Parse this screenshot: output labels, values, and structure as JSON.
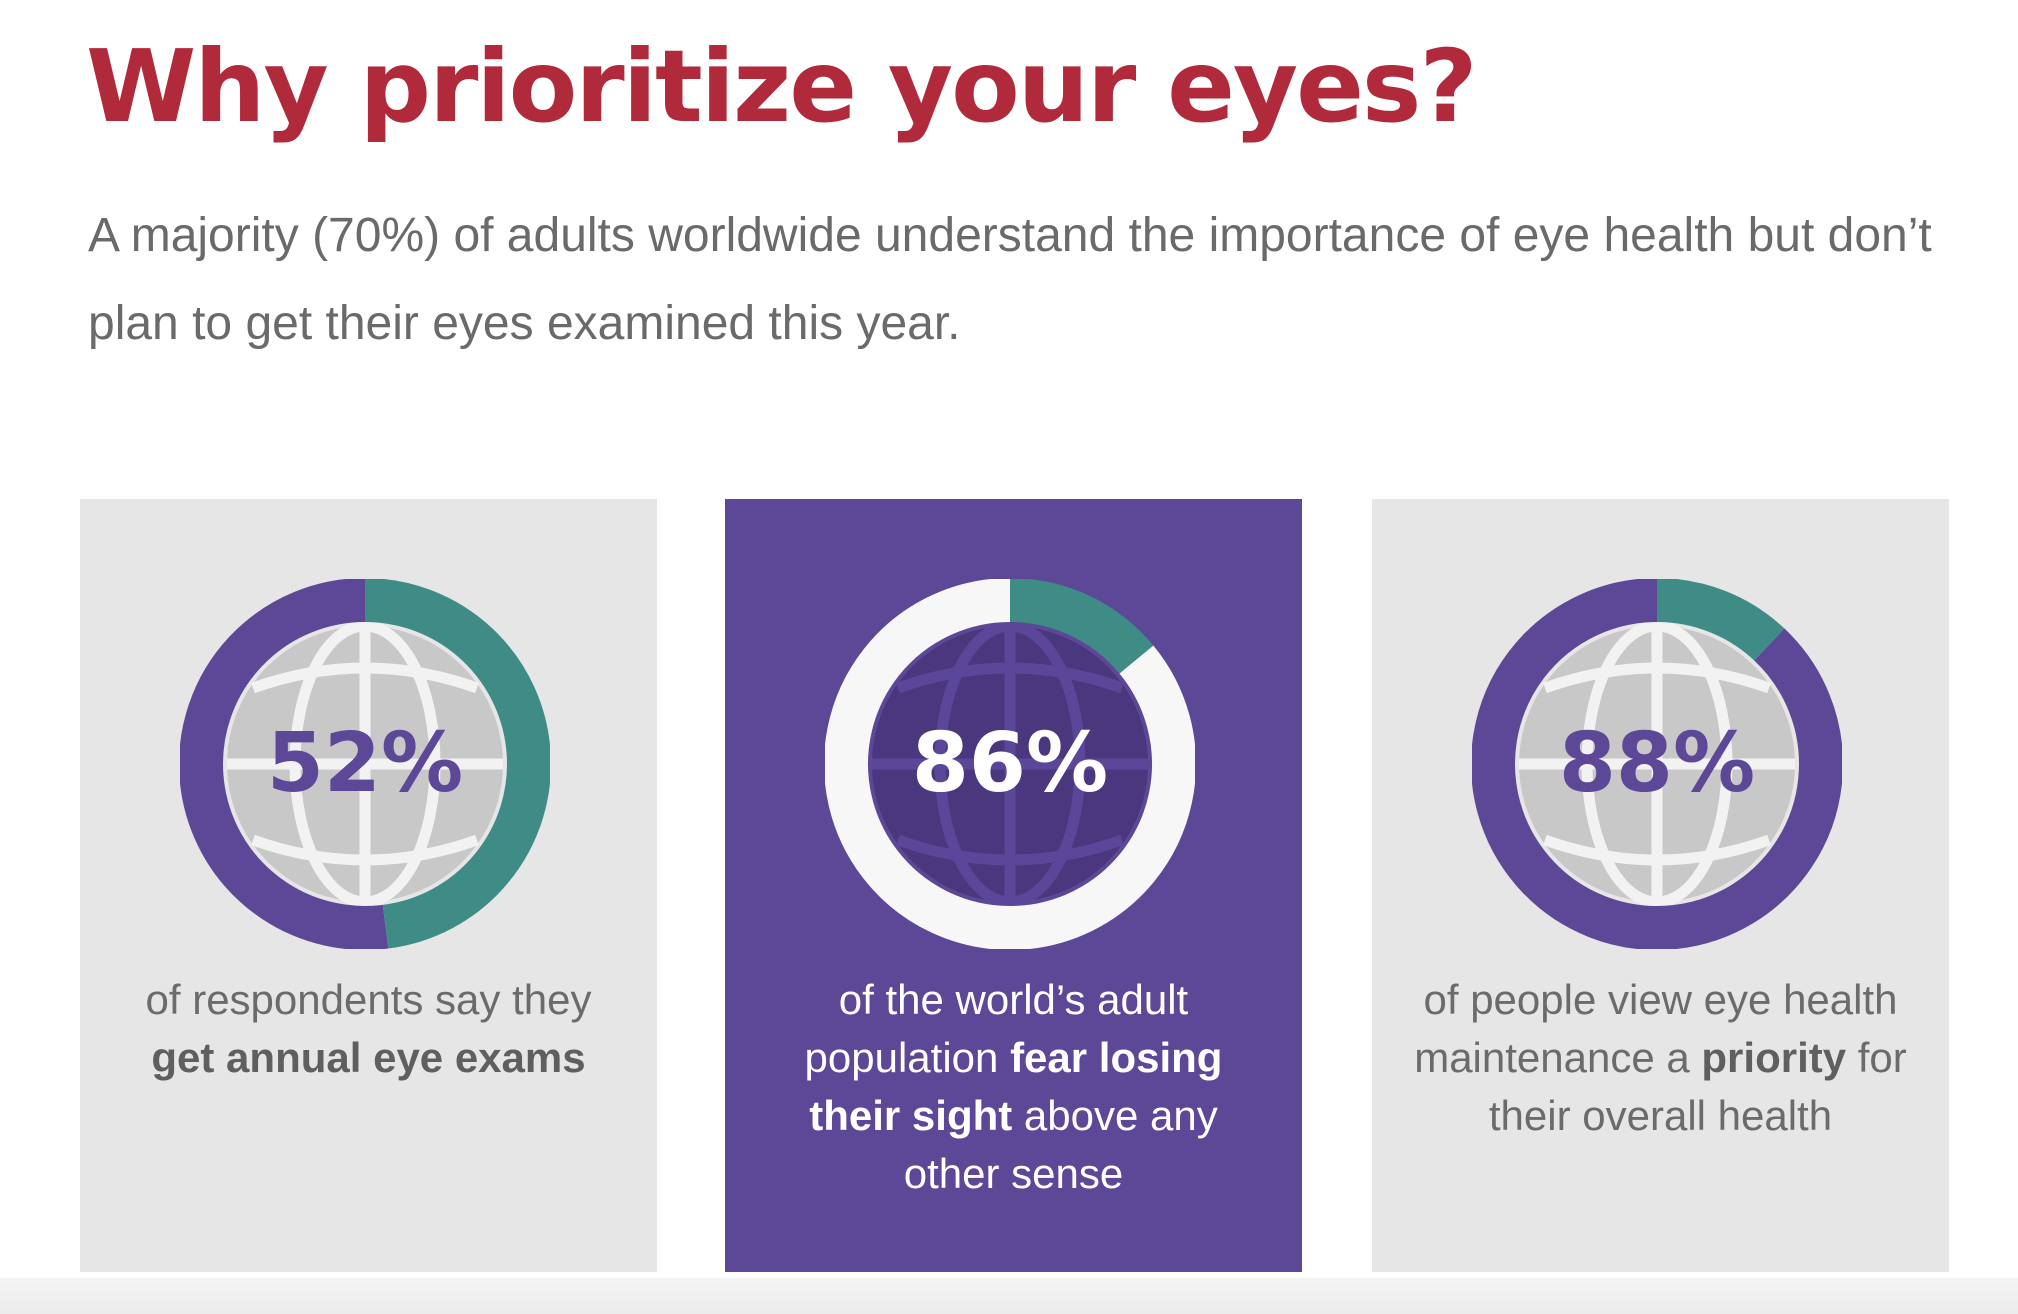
{
  "title": "Why prioritize your eyes?",
  "intro": "A majority (70%) of adults worldwide understand the importance of eye health but don’t plan to get their eyes examined this year.",
  "colors": {
    "title": "#b02a3b",
    "purple": "#5d4797",
    "teal": "#3f8c87",
    "card_gray": "#e6e6e6",
    "globe_gray": "#c8c8c8",
    "white_ring": "#f7f7f7"
  },
  "cards": [
    {
      "stat": "52%",
      "text_before": "of respondents say they ",
      "text_bold": "get annual eye exams",
      "text_mid": "",
      "text_after": ""
    },
    {
      "stat": "86%",
      "text_before": "of the world’s adult population ",
      "text_bold": "fear losing their sight",
      "text_mid": " above any other sense",
      "text_after": ""
    },
    {
      "stat": "88%",
      "text_before": "of people view eye health maintenance a ",
      "text_bold": "priority",
      "text_mid": " for their overall health",
      "text_after": ""
    }
  ],
  "chart_data": [
    {
      "type": "pie",
      "variant": "donut",
      "values": [
        52,
        48
      ],
      "highlight_value": 52,
      "center_label": "52%",
      "colors": [
        "#5d4797",
        "#3f8c87"
      ],
      "center_icon": "globe-icon"
    },
    {
      "type": "pie",
      "variant": "donut",
      "values": [
        86,
        14
      ],
      "highlight_value": 86,
      "center_label": "86%",
      "colors": [
        "#f7f7f7",
        "#3f8c87"
      ],
      "center_icon": "globe-icon"
    },
    {
      "type": "pie",
      "variant": "donut",
      "values": [
        88,
        12
      ],
      "highlight_value": 88,
      "center_label": "88%",
      "colors": [
        "#5d4797",
        "#3f8c87"
      ],
      "center_icon": "globe-icon"
    }
  ]
}
